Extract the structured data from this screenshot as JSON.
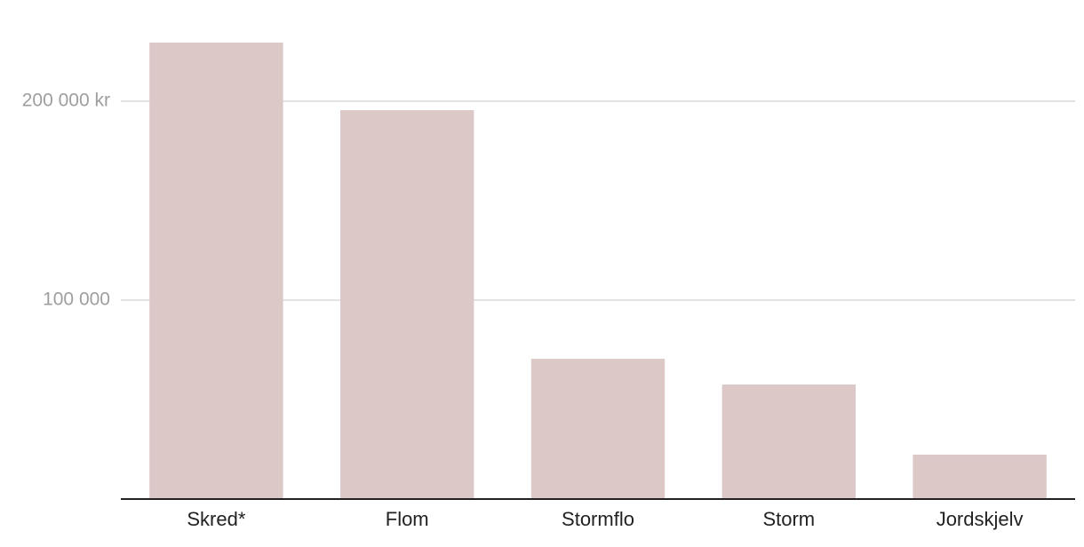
{
  "chart_data": {
    "type": "bar",
    "categories": [
      "Skred*",
      "Flom",
      "Stormflo",
      "Storm",
      "Jordskjelv"
    ],
    "values": [
      229500,
      195500,
      70500,
      57600,
      22300
    ],
    "color": "#dbc8c7",
    "ylim": [
      0,
      230000
    ],
    "yticks": [
      {
        "value": 100000,
        "label": "100 000"
      },
      {
        "value": 200000,
        "label": "200 000 kr"
      }
    ],
    "grid": true
  }
}
